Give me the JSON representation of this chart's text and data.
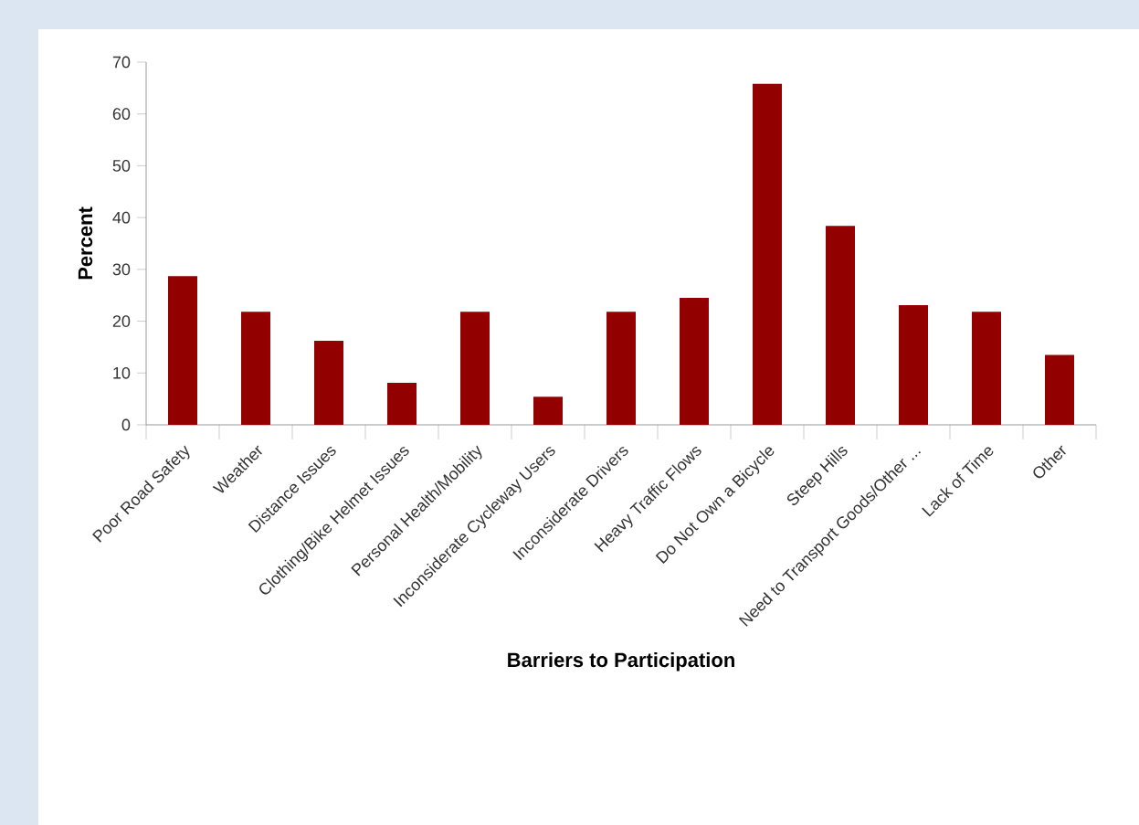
{
  "chart_data": {
    "type": "bar",
    "xlabel": "Barriers to Participation",
    "ylabel": "Percent",
    "categories": [
      "Poor Road Safety",
      "Weather",
      "Distance Issues",
      "Clothing/Bike Helmet Issues",
      "Personal Health/Mobility",
      "Inconsiderate Cycleway Users",
      "Inconsiderate Drivers",
      "Heavy Traffic Flows",
      "Do Not Own a Bicycle",
      "Steep Hills",
      "Need to Transport Goods/Other ...",
      "Lack of Time",
      "Other"
    ],
    "values": [
      28.7,
      21.8,
      16.2,
      8.1,
      21.8,
      5.4,
      21.8,
      24.5,
      65.8,
      38.4,
      23.1,
      21.8,
      13.5
    ],
    "color": "#920000",
    "ylim": [
      0,
      70
    ],
    "yticks": [
      0,
      10,
      20,
      30,
      40,
      50,
      60,
      70
    ],
    "grid": false
  }
}
